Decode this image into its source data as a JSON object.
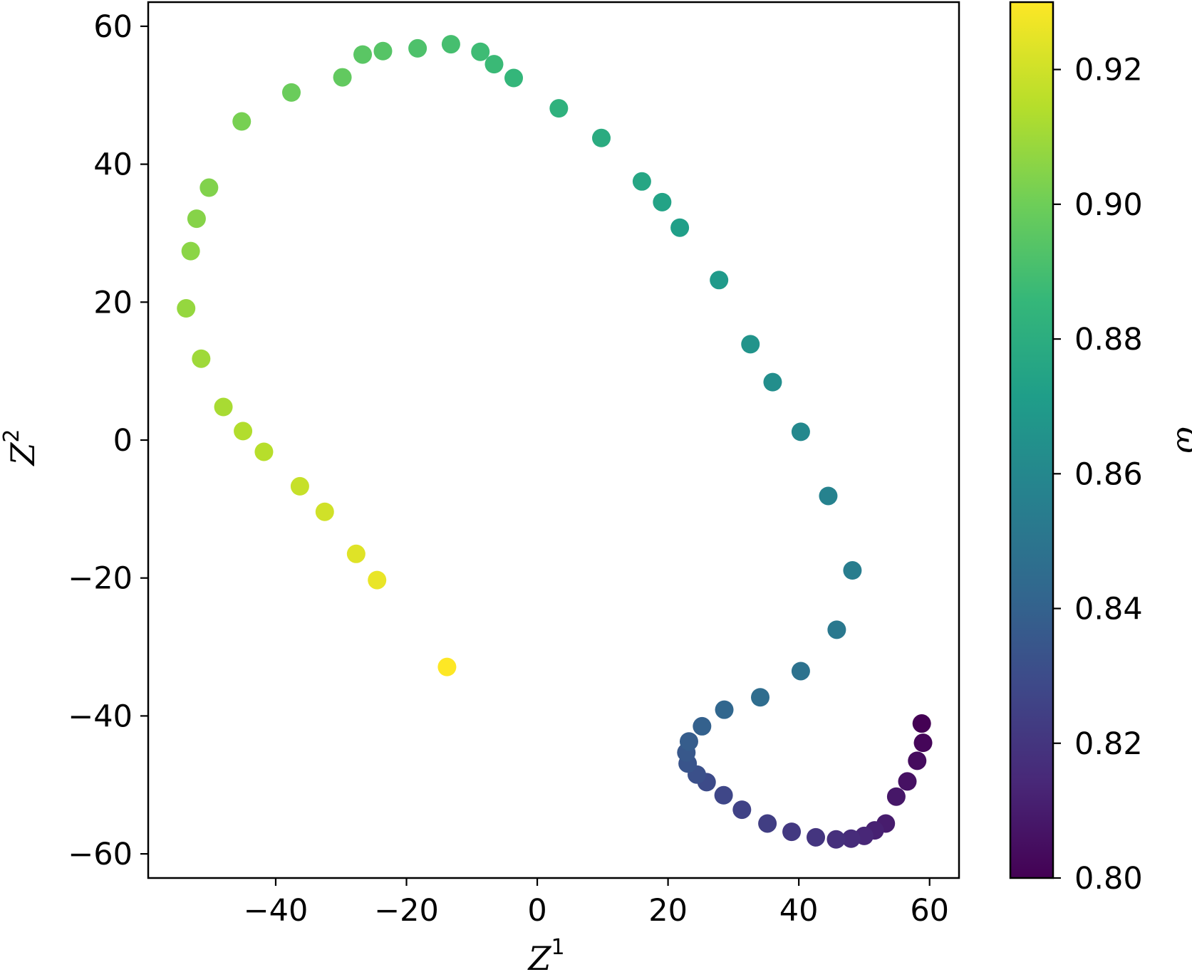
{
  "chart_data": {
    "type": "scatter",
    "xlabel": "Z",
    "xlabel_sup": "1",
    "ylabel": "Z",
    "ylabel_sup": "2",
    "xlim": [
      -59.5,
      64.5
    ],
    "ylim": [
      -63.5,
      63.5
    ],
    "xticks": [
      -40,
      -20,
      0,
      20,
      40,
      60
    ],
    "yticks": [
      -60,
      -40,
      -20,
      0,
      20,
      40,
      60
    ],
    "xtick_labels": [
      "−40",
      "−20",
      "0",
      "20",
      "40",
      "60"
    ],
    "ytick_labels": [
      "−60",
      "−40",
      "−20",
      "0",
      "20",
      "40",
      "60"
    ],
    "grid": false,
    "colorbar": {
      "label": "ω",
      "colormap": "viridis",
      "range": [
        0.8,
        0.93
      ],
      "ticks": [
        0.8,
        0.82,
        0.84,
        0.86,
        0.88,
        0.9,
        0.92
      ],
      "tick_labels": [
        "0.80",
        "0.82",
        "0.84",
        "0.86",
        "0.88",
        "0.90",
        "0.92"
      ]
    },
    "points": [
      {
        "x": 58.8,
        "y": -41.1,
        "c": 0.8
      },
      {
        "x": 59.0,
        "y": -43.9,
        "c": 0.802
      },
      {
        "x": 58.1,
        "y": -46.5,
        "c": 0.804
      },
      {
        "x": 56.6,
        "y": -49.5,
        "c": 0.806
      },
      {
        "x": 54.9,
        "y": -51.7,
        "c": 0.808
      },
      {
        "x": 53.3,
        "y": -55.6,
        "c": 0.81
      },
      {
        "x": 51.6,
        "y": -56.6,
        "c": 0.812
      },
      {
        "x": 50.0,
        "y": -57.4,
        "c": 0.814
      },
      {
        "x": 48.0,
        "y": -57.8,
        "c": 0.816
      },
      {
        "x": 45.7,
        "y": -57.9,
        "c": 0.818
      },
      {
        "x": 42.6,
        "y": -57.6,
        "c": 0.82
      },
      {
        "x": 38.9,
        "y": -56.8,
        "c": 0.822
      },
      {
        "x": 35.2,
        "y": -55.6,
        "c": 0.824
      },
      {
        "x": 31.3,
        "y": -53.6,
        "c": 0.826
      },
      {
        "x": 28.5,
        "y": -51.5,
        "c": 0.828
      },
      {
        "x": 25.9,
        "y": -49.6,
        "c": 0.83
      },
      {
        "x": 24.4,
        "y": -48.5,
        "c": 0.832
      },
      {
        "x": 23.0,
        "y": -46.9,
        "c": 0.834
      },
      {
        "x": 22.8,
        "y": -45.3,
        "c": 0.836
      },
      {
        "x": 23.2,
        "y": -43.7,
        "c": 0.838
      },
      {
        "x": 25.2,
        "y": -41.5,
        "c": 0.84
      },
      {
        "x": 28.6,
        "y": -39.1,
        "c": 0.843
      },
      {
        "x": 34.1,
        "y": -37.3,
        "c": 0.846
      },
      {
        "x": 40.3,
        "y": -33.5,
        "c": 0.849
      },
      {
        "x": 45.8,
        "y": -27.5,
        "c": 0.852
      },
      {
        "x": 48.2,
        "y": -18.9,
        "c": 0.855
      },
      {
        "x": 44.5,
        "y": -8.1,
        "c": 0.858
      },
      {
        "x": 40.3,
        "y": 1.2,
        "c": 0.861
      },
      {
        "x": 36.0,
        "y": 8.4,
        "c": 0.864
      },
      {
        "x": 32.6,
        "y": 13.9,
        "c": 0.867
      },
      {
        "x": 27.8,
        "y": 23.2,
        "c": 0.87
      },
      {
        "x": 21.8,
        "y": 30.8,
        "c": 0.873
      },
      {
        "x": 19.1,
        "y": 34.5,
        "c": 0.875
      },
      {
        "x": 16.0,
        "y": 37.5,
        "c": 0.877
      },
      {
        "x": 9.8,
        "y": 43.8,
        "c": 0.88
      },
      {
        "x": 3.3,
        "y": 48.1,
        "c": 0.883
      },
      {
        "x": -3.6,
        "y": 52.5,
        "c": 0.886
      },
      {
        "x": -6.6,
        "y": 54.5,
        "c": 0.888
      },
      {
        "x": -8.7,
        "y": 56.3,
        "c": 0.889
      },
      {
        "x": -13.2,
        "y": 57.4,
        "c": 0.891
      },
      {
        "x": -18.3,
        "y": 56.8,
        "c": 0.893
      },
      {
        "x": -23.6,
        "y": 56.4,
        "c": 0.895
      },
      {
        "x": -26.7,
        "y": 55.9,
        "c": 0.896
      },
      {
        "x": -29.8,
        "y": 52.6,
        "c": 0.898
      },
      {
        "x": -37.6,
        "y": 50.4,
        "c": 0.9
      },
      {
        "x": -45.2,
        "y": 46.2,
        "c": 0.903
      },
      {
        "x": -50.2,
        "y": 36.6,
        "c": 0.905
      },
      {
        "x": -52.1,
        "y": 32.1,
        "c": 0.906
      },
      {
        "x": -53.0,
        "y": 27.4,
        "c": 0.907
      },
      {
        "x": -53.7,
        "y": 19.1,
        "c": 0.909
      },
      {
        "x": -51.4,
        "y": 11.8,
        "c": 0.911
      },
      {
        "x": -48.0,
        "y": 4.8,
        "c": 0.913
      },
      {
        "x": -45.0,
        "y": 1.3,
        "c": 0.915
      },
      {
        "x": -41.8,
        "y": -1.7,
        "c": 0.916
      },
      {
        "x": -36.3,
        "y": -6.7,
        "c": 0.919
      },
      {
        "x": -32.5,
        "y": -10.4,
        "c": 0.921
      },
      {
        "x": -27.7,
        "y": -16.5,
        "c": 0.924
      },
      {
        "x": -24.5,
        "y": -20.3,
        "c": 0.926
      },
      {
        "x": -13.8,
        "y": -32.9,
        "c": 0.93
      }
    ]
  }
}
